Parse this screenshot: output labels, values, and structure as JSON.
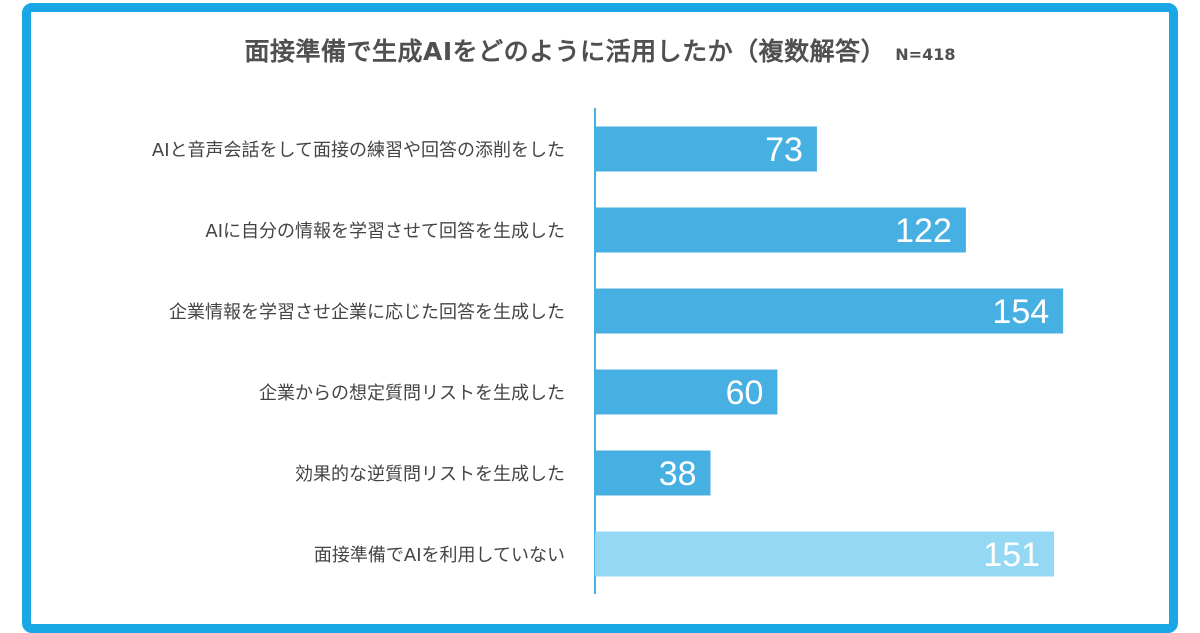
{
  "chart_data": {
    "type": "bar",
    "orientation": "horizontal",
    "title": "面接準備で生成AIをどのように活用したか（複数解答）",
    "subtitle": "N=418",
    "categories": [
      "AIと音声会話をして面接の練習や回答の添削をした",
      "AIに自分の情報を学習させて回答を生成した",
      "企業情報を学習させ企業に応じた回答を生成した",
      "企業からの想定質問リストを生成した",
      "効果的な逆質問リストを生成した",
      "面接準備でAIを利用していない"
    ],
    "values": [
      73,
      122,
      154,
      60,
      38,
      151
    ],
    "bar_colors": [
      "#47b0e2",
      "#47b0e2",
      "#47b0e2",
      "#47b0e2",
      "#47b0e2",
      "#94d8f4"
    ],
    "axis_color": "#47b0e2",
    "frame_color": "#1aa7e6",
    "xlim": [
      0,
      160
    ],
    "grid": false,
    "legend": "none"
  }
}
